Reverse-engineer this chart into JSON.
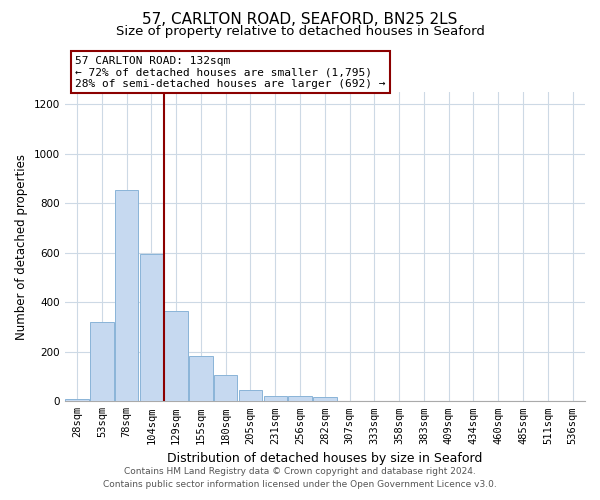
{
  "title": "57, CARLTON ROAD, SEAFORD, BN25 2LS",
  "subtitle": "Size of property relative to detached houses in Seaford",
  "xlabel": "Distribution of detached houses by size in Seaford",
  "ylabel": "Number of detached properties",
  "bar_labels": [
    "28sqm",
    "53sqm",
    "78sqm",
    "104sqm",
    "129sqm",
    "155sqm",
    "180sqm",
    "205sqm",
    "231sqm",
    "256sqm",
    "282sqm",
    "307sqm",
    "333sqm",
    "358sqm",
    "383sqm",
    "409sqm",
    "434sqm",
    "460sqm",
    "485sqm",
    "511sqm",
    "536sqm"
  ],
  "bar_values": [
    10,
    320,
    855,
    595,
    365,
    185,
    105,
    45,
    20,
    20,
    17,
    2,
    0,
    0,
    0,
    0,
    3,
    0,
    0,
    0,
    0
  ],
  "bar_color": "#c6d9f0",
  "bar_edgecolor": "#8ab4d8",
  "vline_index": 4,
  "vline_color": "#8b0000",
  "annotation_line1": "57 CARLTON ROAD: 132sqm",
  "annotation_line2": "← 72% of detached houses are smaller (1,795)",
  "annotation_line3": "28% of semi-detached houses are larger (692) →",
  "annotation_box_edgecolor": "#8b0000",
  "annotation_box_facecolor": "#ffffff",
  "ylim": [
    0,
    1250
  ],
  "yticks": [
    0,
    200,
    400,
    600,
    800,
    1000,
    1200
  ],
  "footer1": "Contains HM Land Registry data © Crown copyright and database right 2024.",
  "footer2": "Contains public sector information licensed under the Open Government Licence v3.0.",
  "bg_color": "#ffffff",
  "grid_color": "#cdd9e5",
  "title_fontsize": 11,
  "subtitle_fontsize": 9.5,
  "xlabel_fontsize": 9,
  "ylabel_fontsize": 8.5,
  "tick_fontsize": 7.5,
  "annotation_fontsize": 8,
  "footer_fontsize": 6.5
}
